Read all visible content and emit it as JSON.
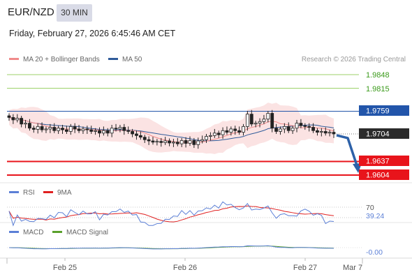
{
  "header": {
    "symbol": "EUR/NZD",
    "interval": "30 MIN",
    "timestamp": "Friday, February 27, 2026 6:45:46 AM CET"
  },
  "legend": {
    "ma20": "MA 20 + Bollinger Bands",
    "ma50": "MA 50",
    "rsi": "RSI",
    "rsi_ma": "9MA",
    "macd": "MACD",
    "macd_signal": "MACD Signal",
    "copyright": "Research © 2026 Trading Central"
  },
  "colors": {
    "ma20": "#f08a8a",
    "ma50": "#2f5b9a",
    "bollinger_fill": "#fbe3e3",
    "resistance": "#9cd16a",
    "pivot": "#2255aa",
    "support": "#e8141b",
    "arrow": "#2d61a8",
    "rsi": "#5b7fd6",
    "rsi_ma": "#e02020",
    "macd": "#5b7fd6",
    "macd_signal": "#5aa02c"
  },
  "levels": {
    "resistance_2": "1.9848",
    "resistance_1": "1.9815",
    "pivot": "1.9759",
    "last_price": "1.9704",
    "support_1": "1.9637",
    "support_2": "1.9604"
  },
  "rsi_panel": {
    "level_70": "70",
    "value": "39.24"
  },
  "macd_panel": {
    "value": "-0.00"
  },
  "x_axis": [
    "Feb 25",
    "Feb 26",
    "Feb 27",
    "Mar 7"
  ],
  "chart_data": [
    {
      "type": "candlestick",
      "title": "EUR/NZD 30 MIN",
      "y_levels": [
        1.9848,
        1.9815,
        1.9759,
        1.9704,
        1.9637,
        1.9604
      ],
      "close_approx": [
        1.9744,
        1.9738,
        1.9742,
        1.9728,
        1.973,
        1.9718,
        1.9715,
        1.9722,
        1.9714,
        1.9716,
        1.972,
        1.9712,
        1.9718,
        1.9714,
        1.971,
        1.9722,
        1.9716,
        1.9712,
        1.9716,
        1.9714,
        1.971,
        1.9712,
        1.9706,
        1.9712,
        1.9706,
        1.9718,
        1.9716,
        1.972,
        1.9712,
        1.971,
        1.9704,
        1.97,
        1.9696,
        1.969,
        1.9687,
        1.9684,
        1.9686,
        1.9683,
        1.9687,
        1.9682,
        1.9684,
        1.968,
        1.9688,
        1.9681,
        1.9688,
        1.9678,
        1.9687,
        1.969,
        1.9698,
        1.97,
        1.9706,
        1.9702,
        1.9712,
        1.9708,
        1.9716,
        1.9712,
        1.9708,
        1.9722,
        1.9752,
        1.9728,
        1.973,
        1.9734,
        1.974,
        1.9754,
        1.9718,
        1.971,
        1.9716,
        1.9722,
        1.9712,
        1.9718,
        1.973,
        1.9724,
        1.9722,
        1.972,
        1.9712,
        1.9708,
        1.971,
        1.9706,
        1.9708,
        1.9704
      ],
      "arrow_target": 1.9604
    },
    {
      "type": "line",
      "title": "RSI",
      "series": [
        {
          "name": "RSI"
        },
        {
          "name": "9MA"
        }
      ],
      "levels": [
        70
      ],
      "last_value": 39.24
    },
    {
      "type": "line",
      "title": "MACD",
      "series": [
        {
          "name": "MACD"
        },
        {
          "name": "MACD Signal"
        }
      ],
      "last_value": -0.0
    }
  ]
}
